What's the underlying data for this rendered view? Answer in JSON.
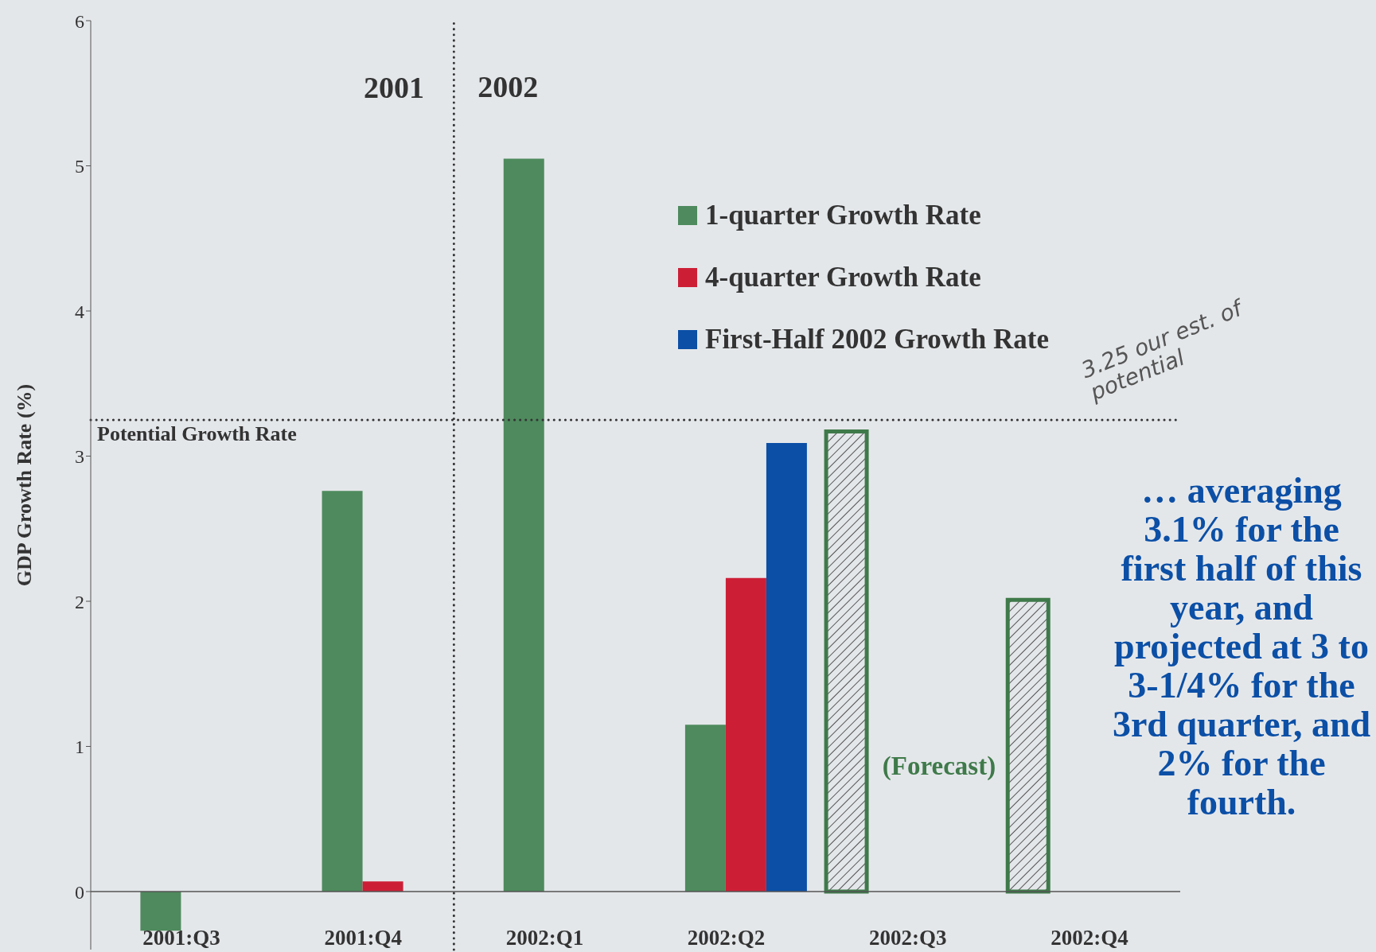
{
  "chart_data": {
    "type": "bar",
    "ylabel": "GDP Growth Rate (%)",
    "categories": [
      "2001:Q3",
      "2001:Q4",
      "2002:Q1",
      "2002:Q2",
      "2002:Q3",
      "2002:Q4"
    ],
    "series": [
      {
        "color": "#3f7a4a",
        "values": [
          null,
          null,
          null,
          null,
          3.17,
          2.01
        ]
      },
      {
        "name": "1-quarter Growth Rate",
        "color": "#4e8a5d",
        "values": [
          -0.27,
          2.76,
          5.05,
          1.15,
          null,
          null
        ]
      },
      {
        "name": "4-quarter Growth Rate",
        "color": "#cc1f36",
        "values": [
          null,
          0.07,
          null,
          2.16,
          null,
          null
        ]
      },
      {
        "name": "First-Half 2002 Growth Rate",
        "color": "#0b4fa6",
        "values": [
          null,
          null,
          null,
          3.09,
          null,
          null
        ]
      }
    ],
    "ylim": [
      -0.4,
      6
    ],
    "yticks": [
      0,
      1,
      2,
      3,
      4,
      5,
      6
    ],
    "legend": "top right",
    "ref_lines": [
      {
        "axis": "y",
        "value": 3.25,
        "label": "Potential Growth Rate",
        "line_style": "dotted",
        "color": "#333333"
      },
      {
        "axis": "x",
        "value": "2002:Q1",
        "label": "2002",
        "line_style": "dotted",
        "color": "#333333"
      }
    ],
    "annotations": [
      "2001",
      "(Forecast)",
      "3.25 our est. of potential",
      "… averaging 3.1% for the first half of this year, and projected at 3 to 3-1/4% for the 3rd quarter, and 2% for the fourth."
    ]
  }
}
